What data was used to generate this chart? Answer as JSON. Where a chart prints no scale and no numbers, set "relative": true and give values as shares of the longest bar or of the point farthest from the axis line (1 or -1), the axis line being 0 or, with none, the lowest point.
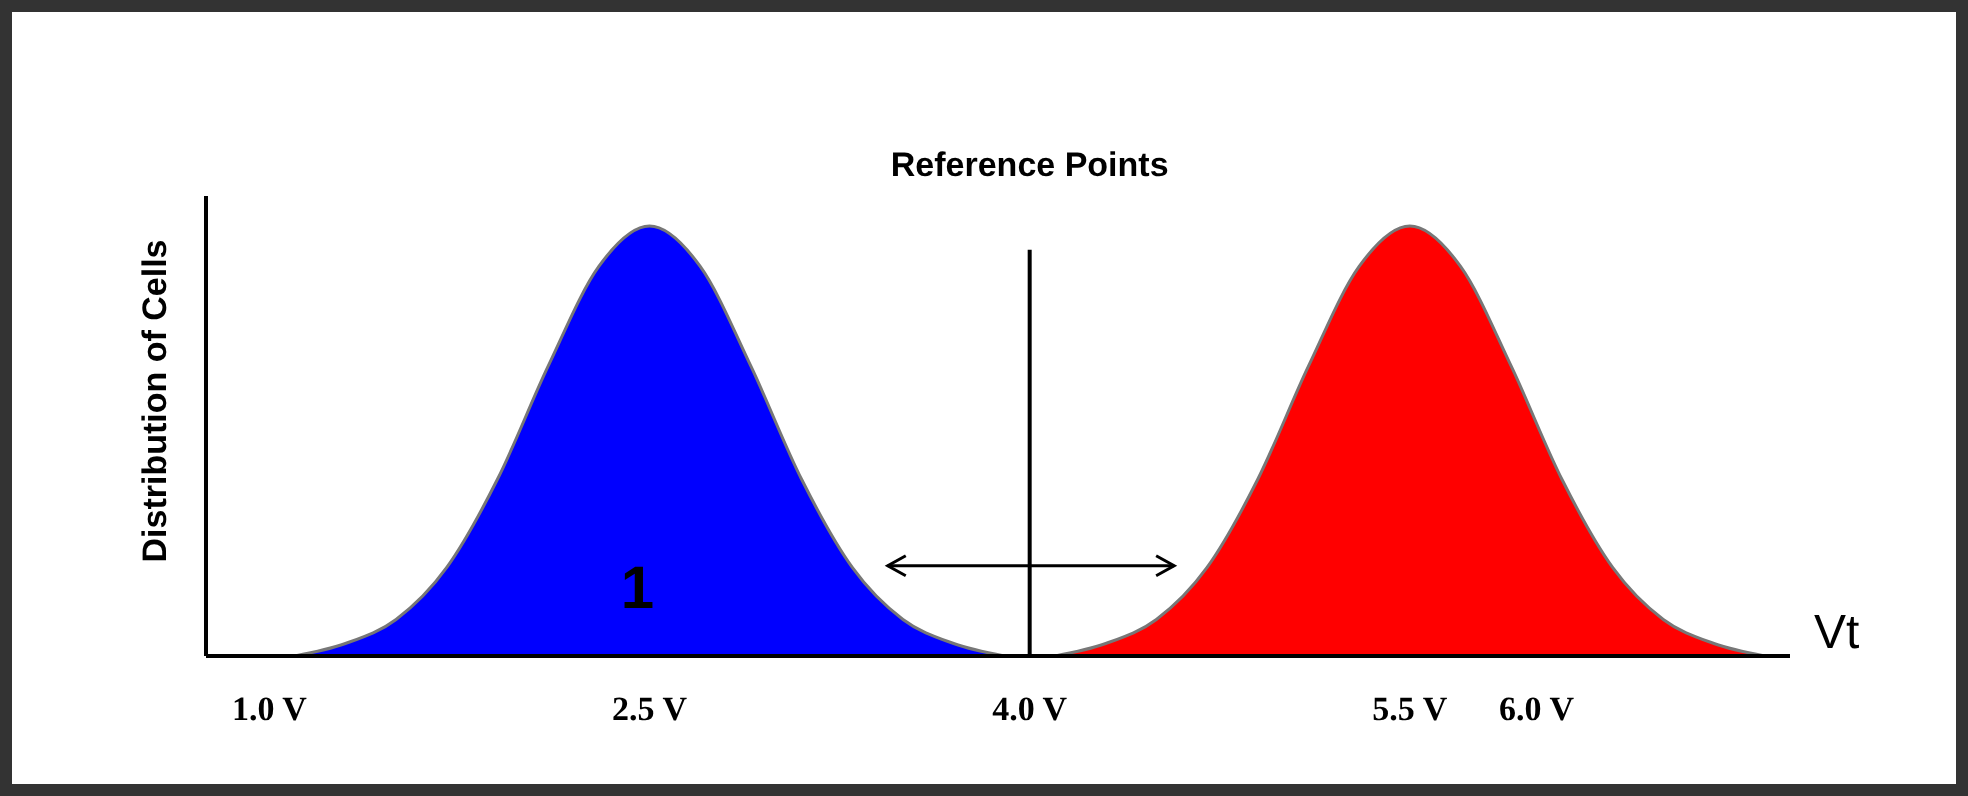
{
  "chart_data": {
    "type": "area",
    "relative": true,
    "xlabel": "Vt",
    "ylabel": "Distribution of Cells",
    "xlim": [
      0.75,
      7.0
    ],
    "xticks": [
      {
        "value": 1.0,
        "label": "1.0 V"
      },
      {
        "value": 2.5,
        "label": "2.5 V"
      },
      {
        "value": 4.0,
        "label": "4.0 V"
      },
      {
        "value": 5.5,
        "label": "5.5 V"
      },
      {
        "value": 6.0,
        "label": "6.0 V"
      }
    ],
    "series": [
      {
        "color": "#0000ff",
        "x": [
          1.1,
          1.3,
          1.5,
          1.7,
          1.9,
          2.1,
          2.3,
          2.5,
          2.7,
          2.9,
          3.1,
          3.3,
          3.5,
          3.7,
          3.9
        ],
        "values": [
          0,
          0.029,
          0.085,
          0.206,
          0.411,
          0.674,
          0.906,
          1,
          0.906,
          0.674,
          0.411,
          0.206,
          0.085,
          0.029,
          0
        ]
      },
      {
        "color": "#ff0000",
        "x": [
          4.1,
          4.3,
          4.5,
          4.7,
          4.9,
          5.1,
          5.3,
          5.5,
          5.7,
          5.9,
          6.1,
          6.3,
          6.5,
          6.7,
          6.9
        ],
        "values": [
          0,
          0.029,
          0.085,
          0.206,
          0.411,
          0.674,
          0.906,
          1,
          0.906,
          0.674,
          0.411,
          0.206,
          0.085,
          0.029,
          0
        ]
      }
    ],
    "ref_lines": [
      {
        "axis": "x",
        "value": 4.0,
        "label": "Reference Points",
        "color": "#000000"
      }
    ],
    "annotations": [
      "1"
    ],
    "grid": false
  }
}
